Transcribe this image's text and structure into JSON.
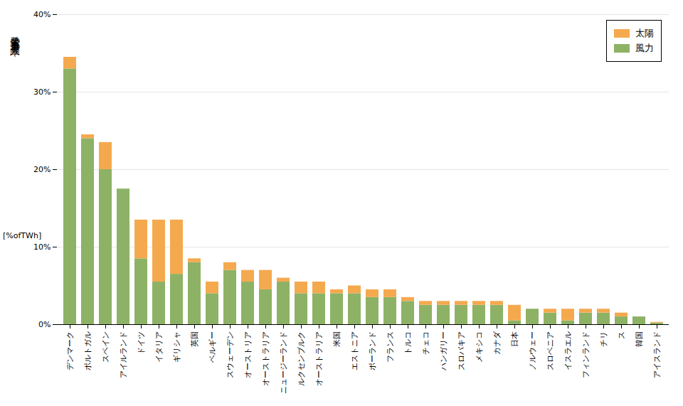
{
  "chart_data": {
    "type": "bar",
    "stacked": true,
    "categories": [
      "デンマーク",
      "ポルトガル",
      "スペイン",
      "アイルランド",
      "ドイツ",
      "イタリア",
      "ギリシャ",
      "英国",
      "ベルギー",
      "スウェーデン",
      "オーストリア",
      "オーストラリア",
      "ニュージーランド",
      "ルクセンブルク",
      "オーストラリア",
      "米国",
      "エストニア",
      "ポーランド",
      "フランス",
      "トルコ",
      "チェコ",
      "ハンガリー",
      "スロバキア",
      "メキシコ",
      "カナダ",
      "日本",
      "ノルウェー",
      "スロベニア",
      "イスラエル",
      "フィンランド",
      "チリ",
      "ス",
      "韓国",
      "アイスランド"
    ],
    "series": [
      {
        "name": "風力",
        "color": "#8db265",
        "values": [
          33.0,
          24.0,
          20.0,
          17.5,
          8.5,
          5.5,
          6.5,
          8.0,
          4.0,
          7.0,
          5.5,
          4.5,
          5.5,
          4.0,
          4.0,
          4.0,
          4.0,
          3.5,
          3.5,
          3.0,
          2.5,
          2.5,
          2.5,
          2.5,
          2.5,
          0.5,
          2.0,
          1.5,
          0.5,
          1.5,
          1.5,
          1.0,
          1.0,
          0.2
        ]
      },
      {
        "name": "太陽",
        "color": "#f5a94e",
        "values": [
          1.5,
          0.5,
          3.5,
          0.0,
          5.0,
          8.0,
          7.0,
          0.5,
          1.5,
          1.0,
          1.5,
          2.5,
          0.5,
          1.5,
          1.5,
          0.5,
          1.0,
          1.0,
          1.0,
          0.5,
          0.5,
          0.5,
          0.5,
          0.5,
          0.5,
          2.0,
          0.0,
          0.5,
          1.5,
          0.5,
          0.5,
          0.5,
          0.0,
          0.1
        ]
      }
    ],
    "ylabel": "発電電力量導入率",
    "annotations": [
      "[%ofTWh]"
    ],
    "ylim": [
      0,
      40
    ],
    "yticks": [
      {
        "value": 0,
        "label": "0%"
      },
      {
        "value": 10,
        "label": "10%"
      },
      {
        "value": 20,
        "label": "20%"
      },
      {
        "value": 30,
        "label": "30%"
      },
      {
        "value": 40,
        "label": "40%"
      }
    ],
    "grid": true,
    "legend": "upper right"
  }
}
